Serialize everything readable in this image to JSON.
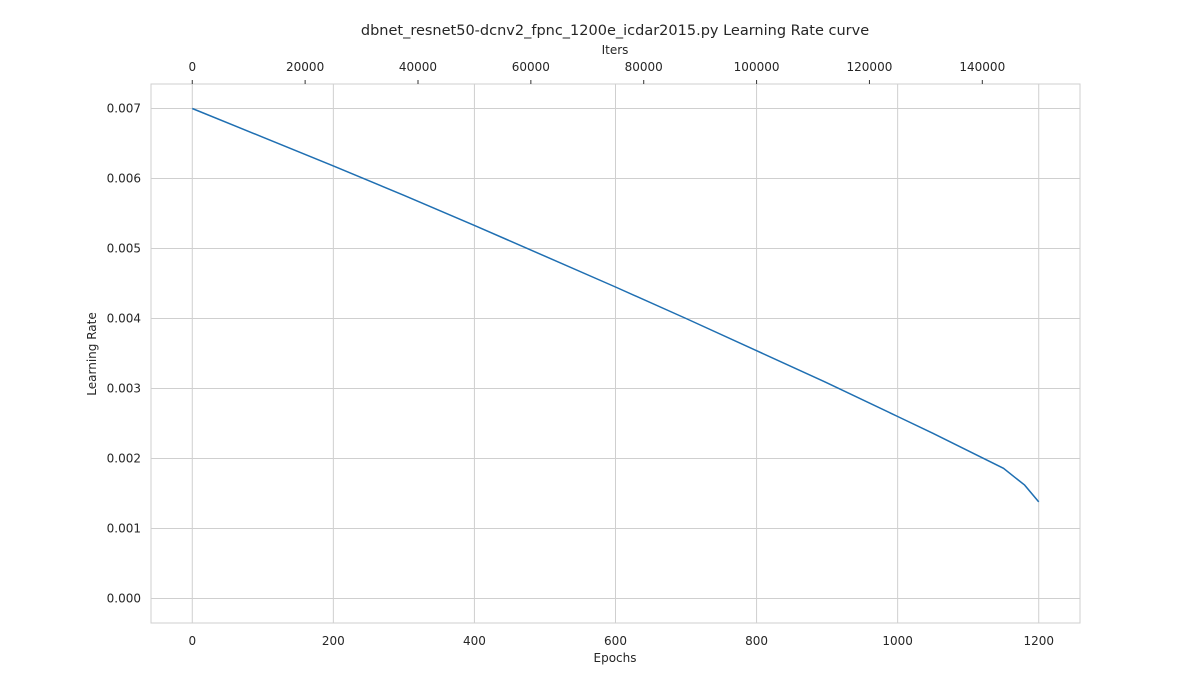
{
  "chart_data": {
    "type": "line",
    "title": "dbnet_resnet50-dcnv2_fpnc_1200e_icdar2015.py Learning Rate curve",
    "xlabel": "Epochs",
    "ylabel": "Learning Rate",
    "top_xlabel": "Iters",
    "xlim": [
      -58.5,
      1258.5
    ],
    "ylim": [
      -0.00035,
      0.00735
    ],
    "top_xlim": [
      -7312.5,
      157312.5
    ],
    "x_ticks": [
      0,
      200,
      400,
      600,
      800,
      1000,
      1200
    ],
    "x_tick_labels": [
      "0",
      "200",
      "400",
      "600",
      "800",
      "1000",
      "1200"
    ],
    "top_x_ticks": [
      0,
      20000,
      40000,
      60000,
      80000,
      100000,
      120000,
      140000
    ],
    "top_x_tick_labels": [
      "0",
      "20000",
      "40000",
      "60000",
      "80000",
      "100000",
      "120000",
      "140000"
    ],
    "y_ticks": [
      0,
      0.001,
      0.002,
      0.003,
      0.004,
      0.005,
      0.006,
      0.007
    ],
    "y_tick_labels": [
      "0.000",
      "0.001",
      "0.002",
      "0.003",
      "0.004",
      "0.005",
      "0.006",
      "0.007"
    ],
    "grid": true,
    "series": [
      {
        "color": "#1f6fb2",
        "x": [
          0,
          100,
          200,
          300,
          400,
          500,
          600,
          700,
          800,
          900,
          1000,
          1050,
          1100,
          1150,
          1180,
          1200
        ],
        "y": [
          0.007,
          0.00659,
          0.00618,
          0.00576,
          0.00533,
          0.00489,
          0.00445,
          0.004,
          0.00354,
          0.00308,
          0.0026,
          0.00236,
          0.00211,
          0.00186,
          0.00162,
          0.00138
        ]
      }
    ]
  }
}
